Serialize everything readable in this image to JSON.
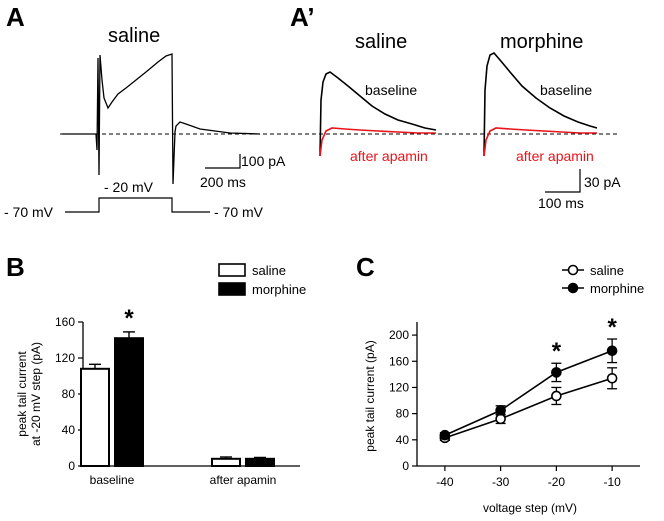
{
  "panels": {
    "a": "A",
    "a_prime": "A’",
    "b": "B",
    "c": "C"
  },
  "traces": {
    "title_a": "saline",
    "title_saline": "saline",
    "title_morphine": "morphine",
    "baseline_label_saline": "baseline",
    "baseline_label_morphine": "baseline",
    "apamin_label_saline": "after apamin",
    "apamin_label_morphine": "after apamin",
    "scale_a_current": "100 pA",
    "scale_a_time": "200 ms",
    "scale_ap_current": "30 pA",
    "scale_ap_time": "100 ms",
    "protocol_step": "- 20 mV",
    "protocol_hold_left": "- 70 mV",
    "protocol_hold_right": "- 70 mV",
    "colors": {
      "baseline": "#000000",
      "apamin": "#e8141b"
    }
  },
  "chart_data": [
    {
      "id": "B",
      "type": "bar",
      "categories": [
        "baseline",
        "after apamin"
      ],
      "series": [
        {
          "name": "saline",
          "values": [
            108,
            8
          ],
          "errors": [
            5,
            2
          ],
          "fill": "#ffffff"
        },
        {
          "name": "morphine",
          "values": [
            142,
            8
          ],
          "errors": [
            7,
            1.5
          ],
          "fill": "#000000"
        }
      ],
      "ylabel_line1": "peak tail current",
      "ylabel_line2": "at -20 mV step (pA)",
      "ylim": [
        0,
        160
      ],
      "yticks": [
        0,
        40,
        80,
        120,
        160
      ],
      "significance": [
        {
          "category": "baseline",
          "series": "morphine",
          "mark": "*"
        }
      ],
      "legend": "top-right"
    },
    {
      "id": "C",
      "type": "line",
      "x": [
        -40,
        -30,
        -20,
        -10
      ],
      "xticks": [
        "-40",
        "-30",
        "-20",
        "-10"
      ],
      "series": [
        {
          "name": "saline",
          "values": [
            43,
            72,
            107,
            134
          ],
          "errors": [
            4,
            7,
            13,
            16
          ],
          "marker": "open-circle"
        },
        {
          "name": "morphine",
          "values": [
            47,
            85,
            143,
            176
          ],
          "errors": [
            4,
            7,
            14,
            18
          ],
          "marker": "filled-circle"
        }
      ],
      "xlabel": "voltage step (mV)",
      "ylabel": "peak tail current (pA)",
      "xlim": [
        -45,
        -5
      ],
      "ylim": [
        0,
        220
      ],
      "yticks": [
        0,
        40,
        80,
        120,
        160,
        200
      ],
      "significance": [
        {
          "x": -20,
          "mark": "*"
        },
        {
          "x": -10,
          "mark": "*"
        }
      ],
      "legend": "top-right"
    }
  ]
}
